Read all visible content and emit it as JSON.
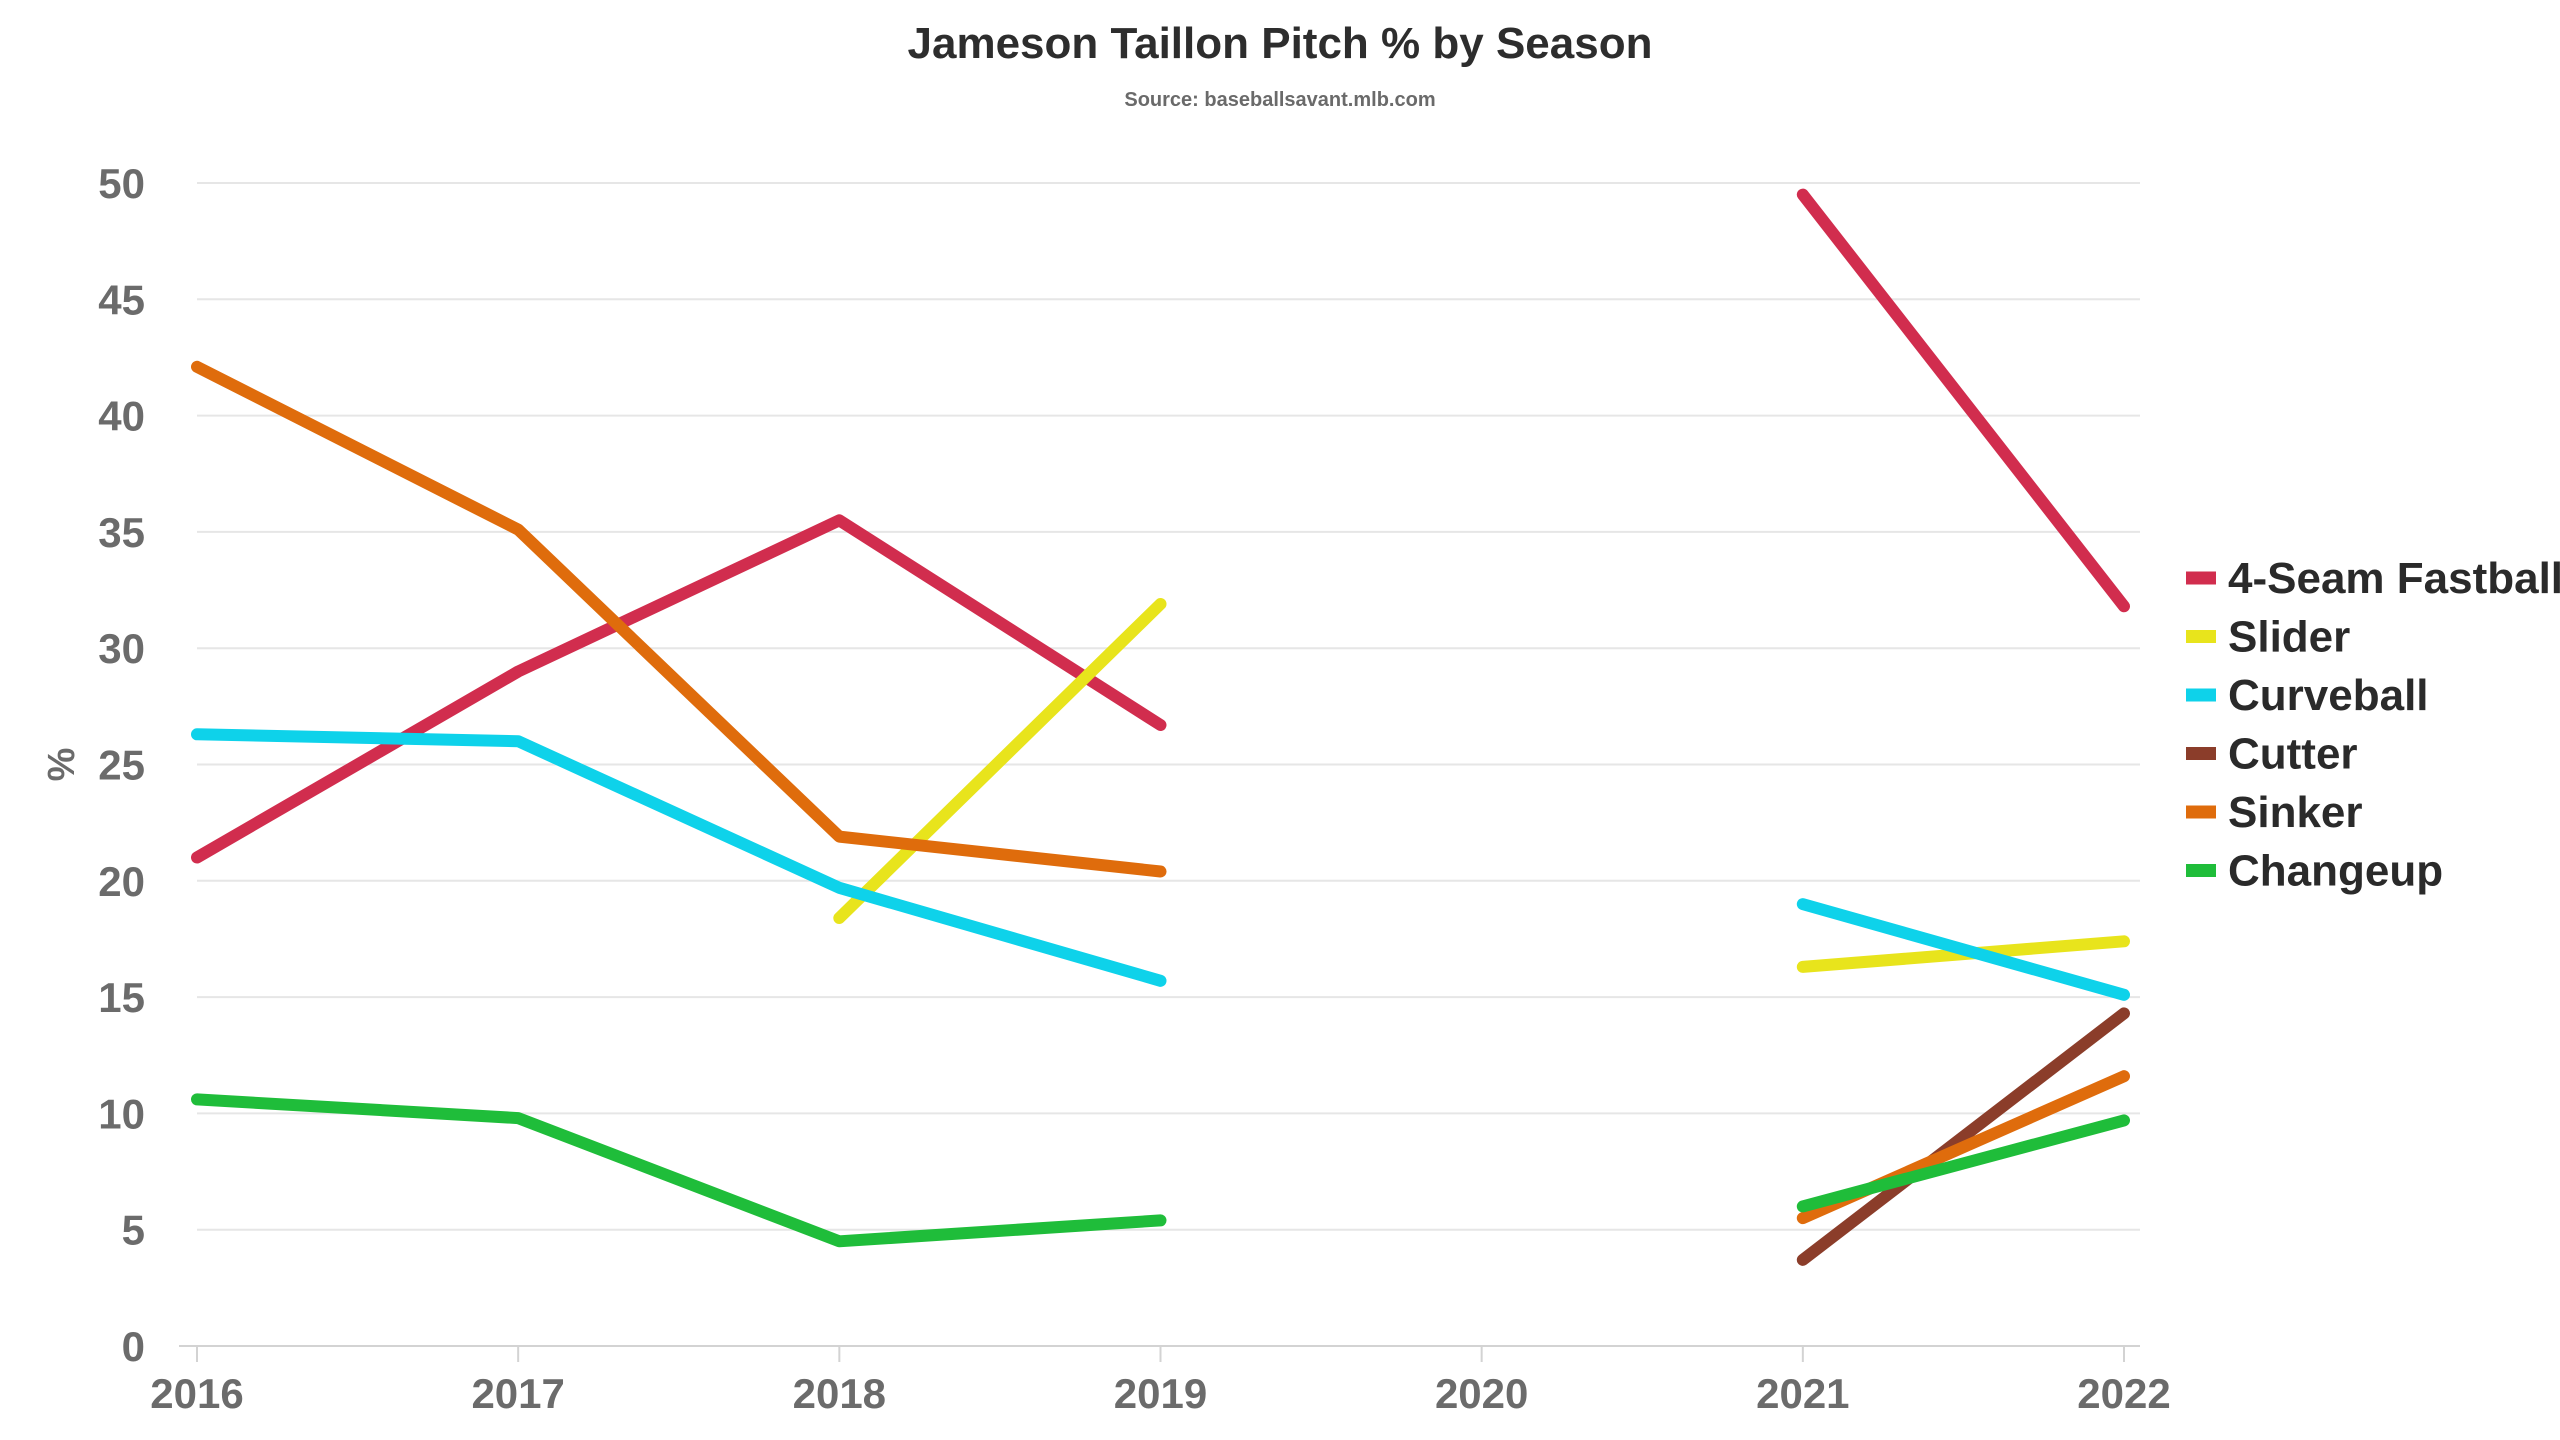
{
  "chart_data": {
    "type": "line",
    "title": "Jameson Taillon Pitch % by Season",
    "subtitle": "Source: baseballsavant.mlb.com",
    "xlabel": "",
    "ylabel": "%",
    "categories": [
      "2016",
      "2017",
      "2018",
      "2019",
      "2020",
      "2021",
      "2022"
    ],
    "ylim": [
      0,
      50
    ],
    "yticks": [
      0,
      5,
      10,
      15,
      20,
      25,
      30,
      35,
      40,
      45,
      50
    ],
    "grid": true,
    "legend_position": "right",
    "series": [
      {
        "name": "4-Seam Fastball",
        "color": "#d12d4e",
        "values": [
          21.0,
          29.0,
          35.5,
          26.7,
          null,
          49.5,
          31.8
        ]
      },
      {
        "name": "Slider",
        "color": "#e8e41c",
        "values": [
          null,
          null,
          18.4,
          31.9,
          null,
          16.3,
          17.4
        ]
      },
      {
        "name": "Curveball",
        "color": "#0ed2ea",
        "values": [
          26.3,
          26.0,
          19.7,
          15.7,
          null,
          19.0,
          15.1
        ]
      },
      {
        "name": "Cutter",
        "color": "#8b3d2a",
        "values": [
          null,
          null,
          null,
          null,
          null,
          3.7,
          14.3
        ]
      },
      {
        "name": "Sinker",
        "color": "#df6c0c",
        "values": [
          42.1,
          35.1,
          21.9,
          20.4,
          null,
          5.5,
          11.6
        ]
      },
      {
        "name": "Changeup",
        "color": "#1fbd3a",
        "values": [
          10.6,
          9.8,
          4.5,
          5.4,
          null,
          6.0,
          9.7
        ]
      }
    ]
  }
}
